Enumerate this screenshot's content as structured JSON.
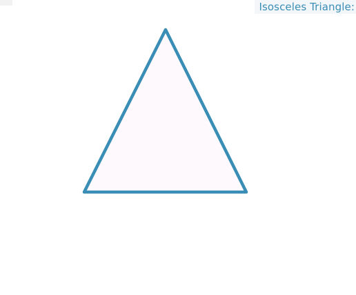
{
  "title": "Isosceles Triangle:",
  "shape": "isosceles-triangle",
  "colors": {
    "stroke": "#3a8db5",
    "fill": "#fdf9fd",
    "title_text": "#3a8db5",
    "background": "#ffffff"
  }
}
